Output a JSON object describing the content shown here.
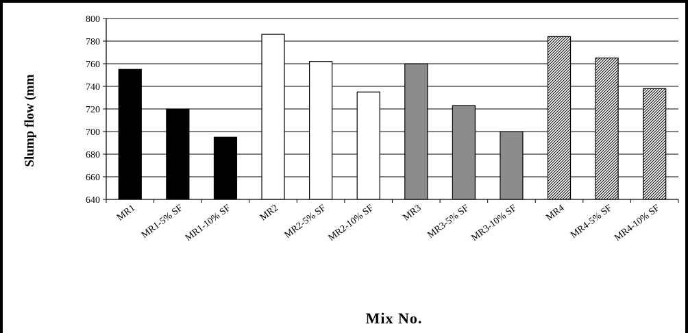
{
  "chart_data": {
    "type": "bar",
    "title": "",
    "xlabel": "Mix No.",
    "ylabel": "Slump flow (mm",
    "ylim": [
      640,
      800
    ],
    "yticks": [
      "640",
      "660",
      "680",
      "700",
      "720",
      "740",
      "760",
      "780",
      "800"
    ],
    "grid": true,
    "categories": [
      "MR1",
      "MR1-5% SF",
      "MR1-10% SF",
      "MR2",
      "MR2-5% SF",
      "MR2-10% SF",
      "MR3",
      "MR3-5% SF",
      "MR3-10% SF",
      "MR4",
      "MR4-5% SF",
      "MR4-10% SF"
    ],
    "values": [
      755,
      720,
      695,
      786,
      762,
      735,
      760,
      723,
      700,
      784,
      765,
      738
    ],
    "fills": [
      "black",
      "black",
      "black",
      "white",
      "white",
      "white",
      "gray",
      "gray",
      "gray",
      "hatched",
      "hatched",
      "hatched"
    ],
    "colors": {
      "black": "#000000",
      "white": "#ffffff",
      "gray": "#8c8c8c",
      "hatch": "#000000",
      "grid": "#000000"
    }
  }
}
